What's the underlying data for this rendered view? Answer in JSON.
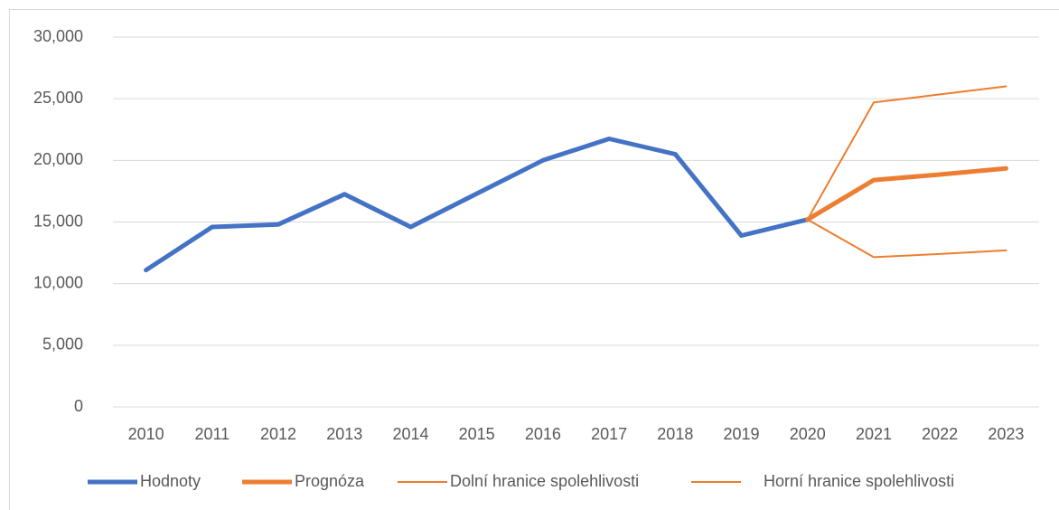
{
  "chart_data": {
    "type": "line",
    "categories": [
      "2010",
      "2011",
      "2012",
      "2013",
      "2014",
      "2015",
      "2016",
      "2017",
      "2018",
      "2019",
      "2020",
      "2021",
      "2022",
      "2023"
    ],
    "series": [
      {
        "name": "Hodnoty",
        "color": "#4472c4",
        "values": [
          11100,
          14600,
          14800,
          17250,
          14600,
          17300,
          20000,
          21750,
          20500,
          13900,
          15200,
          null,
          null,
          null
        ]
      },
      {
        "name": "Prognóza",
        "color": "#ed7d31",
        "values": [
          null,
          null,
          null,
          null,
          null,
          null,
          null,
          null,
          null,
          null,
          15200,
          18400,
          18850,
          19350
        ]
      },
      {
        "name": "Dolní hranice spolehlivosti",
        "color": "#ed7d31",
        "values": [
          null,
          null,
          null,
          null,
          null,
          null,
          null,
          null,
          null,
          null,
          15200,
          12150,
          12400,
          12700
        ]
      },
      {
        "name": "Horní hranice spolehlivosti",
        "color": "#ed7d31",
        "values": [
          null,
          null,
          null,
          null,
          null,
          null,
          null,
          null,
          null,
          null,
          15200,
          24700,
          25350,
          26000
        ]
      }
    ],
    "ylim": [
      0,
      30000
    ],
    "yticks": [
      0,
      {
        "value": 5000,
        "label": "5,000"
      },
      {
        "value": 10000,
        "label": "10,000"
      },
      {
        "value": 15000,
        "label": "15,000"
      },
      {
        "value": 20000,
        "label": "20,000"
      },
      {
        "value": 25000,
        "label": "25,000"
      },
      {
        "value": 30000,
        "label": "30,000"
      }
    ],
    "grid": true,
    "legend": "bottom"
  }
}
